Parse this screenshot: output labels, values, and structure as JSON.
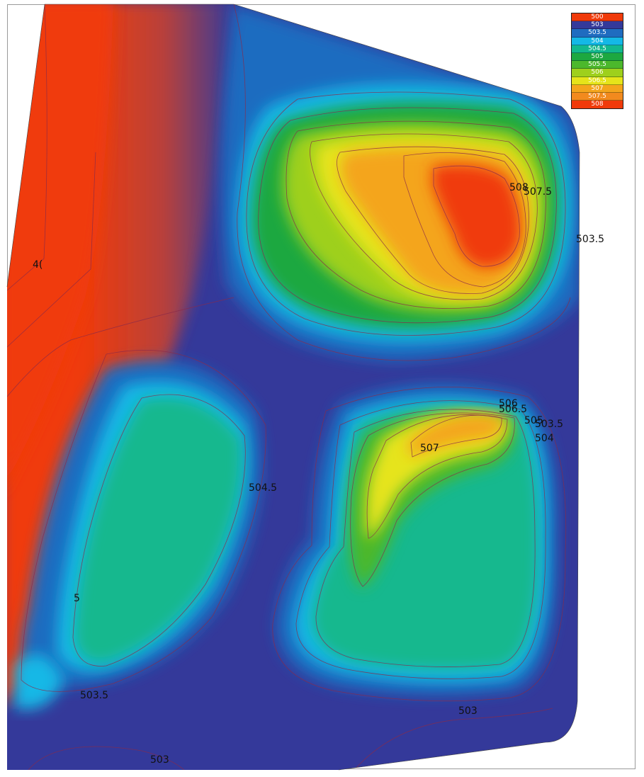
{
  "legend": {
    "items": [
      {
        "label": "500",
        "color": "#f03a0a"
      },
      {
        "label": "503",
        "color": "#34399a"
      },
      {
        "label": "503.5",
        "color": "#1f6cc0"
      },
      {
        "label": "504",
        "color": "#14b8e6"
      },
      {
        "label": "504.5",
        "color": "#12b88e"
      },
      {
        "label": "505",
        "color": "#1da840"
      },
      {
        "label": "505.5",
        "color": "#4cb82c"
      },
      {
        "label": "506",
        "color": "#9ed01c"
      },
      {
        "label": "506.5",
        "color": "#e6e41a"
      },
      {
        "label": "507",
        "color": "#f4a51c"
      },
      {
        "label": "507.5",
        "color": "#f28a1e"
      },
      {
        "label": "508",
        "color": "#f03a0a"
      }
    ]
  },
  "contour_labels": [
    {
      "id": "t1",
      "text": "508"
    },
    {
      "id": "t2",
      "text": "507.5"
    },
    {
      "id": "t3",
      "text": "503.5"
    },
    {
      "id": "t4",
      "text": "506"
    },
    {
      "id": "t5",
      "text": "506.5"
    },
    {
      "id": "t6",
      "text": "505"
    },
    {
      "id": "t7",
      "text": "503.5"
    },
    {
      "id": "t8",
      "text": "504"
    },
    {
      "id": "t9",
      "text": "507"
    },
    {
      "id": "t10",
      "text": "504.5"
    },
    {
      "id": "t11",
      "text": "503"
    },
    {
      "id": "t12",
      "text": "503.5"
    },
    {
      "id": "t13",
      "text": "503"
    },
    {
      "id": "t14",
      "text": "4("
    },
    {
      "id": "t15",
      "text": "5"
    }
  ]
}
